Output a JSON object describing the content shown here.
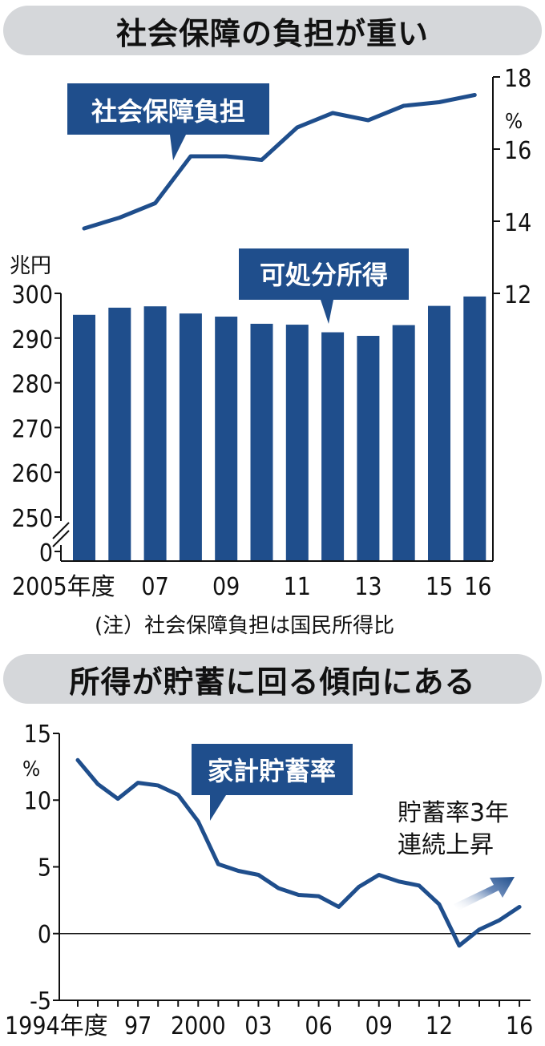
{
  "chart_data": [
    {
      "type": "line",
      "title": "社会保障の負担が重い",
      "series": [
        {
          "name": "社会保障負担",
          "x": [
            2005,
            2006,
            2007,
            2008,
            2009,
            2010,
            2011,
            2012,
            2013,
            2014,
            2015,
            2016
          ],
          "values": [
            13.8,
            14.1,
            14.5,
            15.8,
            15.8,
            15.7,
            16.6,
            17.0,
            16.8,
            17.2,
            17.3,
            17.5
          ]
        }
      ],
      "ylabel": "%",
      "ylim": [
        12,
        18
      ],
      "yticks": [
        "12",
        "14",
        "16",
        "18"
      ],
      "y_axis_position": "right"
    },
    {
      "type": "bar",
      "categories": [
        "2005",
        "2006",
        "2007",
        "2008",
        "2009",
        "2010",
        "2011",
        "2012",
        "2013",
        "2014",
        "2015",
        "2016"
      ],
      "series": [
        {
          "name": "可処分所得",
          "values": [
            295.2,
            296.8,
            297.1,
            295.5,
            294.8,
            293.2,
            293.0,
            291.3,
            290.5,
            292.9,
            297.2,
            299.3
          ]
        }
      ],
      "ylabel": "兆円",
      "ylim": [
        245,
        300
      ],
      "axis_break": true,
      "yticks": [
        "0",
        "250",
        "260",
        "270",
        "280",
        "290",
        "300"
      ],
      "xticks": [
        "2005年度",
        "07",
        "09",
        "11",
        "13",
        "15",
        "16"
      ],
      "note": "(注）社会保障負担は国民所得比"
    },
    {
      "type": "line",
      "title": "所得が貯蓄に回る傾向にある",
      "categories": [
        "1994",
        "1995",
        "1996",
        "1997",
        "1998",
        "1999",
        "2000",
        "2001",
        "2002",
        "2003",
        "2004",
        "2005",
        "2006",
        "2007",
        "2008",
        "2009",
        "2010",
        "2011",
        "2012",
        "2013",
        "2014",
        "2015",
        "2016"
      ],
      "series": [
        {
          "name": "家計貯蓄率",
          "values": [
            13.0,
            11.2,
            10.1,
            11.3,
            11.1,
            10.4,
            8.4,
            5.2,
            4.7,
            4.4,
            3.4,
            2.9,
            2.8,
            2.0,
            3.5,
            4.4,
            3.9,
            3.6,
            2.2,
            -0.9,
            0.3,
            1.0,
            2.0
          ]
        }
      ],
      "ylabel": "%",
      "ylim": [
        -5,
        15
      ],
      "yticks": [
        "-5",
        "0",
        "5",
        "10",
        "15"
      ],
      "xticks": [
        "1994年度",
        "97",
        "2000",
        "03",
        "06",
        "09",
        "12",
        "16"
      ],
      "annotation": [
        "貯蓄率3年",
        "連続上昇"
      ]
    }
  ],
  "colors": {
    "accent": "#1f4e8c",
    "title_bg": "#d5d7da",
    "arrow": "#5d7fb2"
  }
}
